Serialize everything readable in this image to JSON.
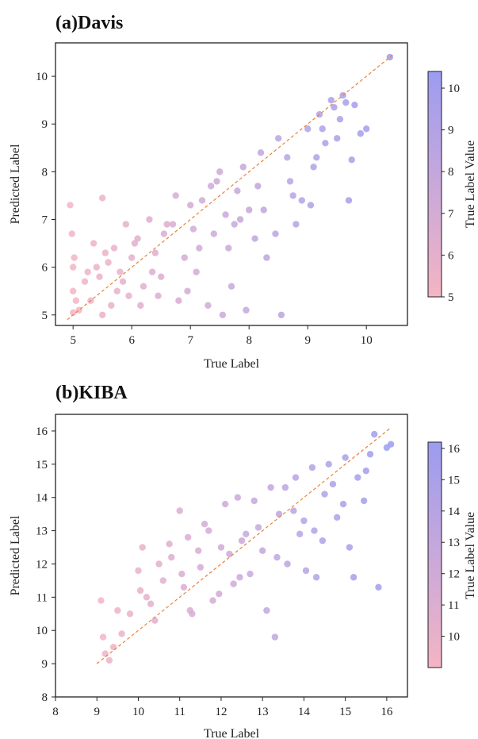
{
  "chart_data": [
    {
      "type": "scatter",
      "title": "(a)Davis",
      "xlabel": "True Label",
      "ylabel": "Predicted Label",
      "xlim": [
        4.7,
        10.7
      ],
      "ylim": [
        4.78,
        10.7
      ],
      "xticks": [
        5,
        6,
        7,
        8,
        9,
        10
      ],
      "yticks": [
        5,
        6,
        7,
        8,
        9,
        10
      ],
      "reference_line": {
        "type": "diagonal y=x",
        "from": 4.9,
        "to": 10.45,
        "color": "#e8823a",
        "style": "dashed"
      },
      "colorbar": {
        "label": "True Label Value",
        "min": 5,
        "max": 10.4,
        "ticks": [
          5,
          6,
          7,
          8,
          9,
          10
        ],
        "color_low": "#f4b4c4",
        "color_high": "#9c9cf0"
      },
      "series": [
        {
          "x": [
            4.95,
            4.98,
            5.0,
            5.0,
            5.0,
            5.02,
            5.3,
            5.35,
            5.45,
            5.5,
            5.6,
            5.65,
            5.7,
            5.8,
            5.9,
            5.95,
            6.0,
            6.1,
            6.2,
            6.3,
            6.4,
            6.5,
            6.6,
            6.75,
            6.9,
            7.0,
            7.1,
            7.2,
            7.4,
            7.5,
            7.6,
            7.7,
            7.8,
            7.9,
            8.0,
            8.1,
            8.2,
            8.3,
            8.5,
            8.7,
            8.9,
            9.0,
            9.1,
            9.2,
            9.3,
            9.4,
            9.5,
            9.6,
            9.7,
            9.8,
            9.9,
            10.0,
            10.4,
            5.05,
            5.2,
            5.4,
            5.55,
            5.75,
            6.05,
            6.35,
            6.55,
            6.8,
            7.05,
            7.3,
            7.45,
            7.65,
            7.85,
            8.15,
            8.45,
            8.65,
            8.8,
            9.05,
            9.25,
            9.55,
            9.75,
            5.1,
            5.25,
            5.5,
            5.85,
            6.15,
            6.45,
            6.7,
            6.95,
            7.15,
            7.35,
            7.55,
            7.75,
            7.95,
            8.25,
            8.55,
            8.75,
            9.15,
            9.45,
            9.65
          ],
          "y": [
            7.3,
            6.7,
            6.0,
            5.5,
            5.05,
            6.2,
            5.3,
            6.5,
            5.8,
            7.45,
            6.1,
            5.2,
            6.4,
            5.9,
            6.9,
            5.4,
            6.2,
            6.6,
            5.6,
            7.0,
            6.3,
            5.8,
            6.9,
            7.5,
            6.2,
            7.3,
            5.9,
            7.4,
            6.7,
            8.0,
            7.1,
            5.6,
            7.6,
            8.1,
            7.2,
            6.6,
            8.4,
            6.2,
            8.7,
            7.8,
            7.4,
            8.9,
            8.1,
            9.2,
            8.6,
            9.5,
            8.7,
            9.6,
            7.4,
            9.4,
            8.8,
            8.9,
            10.4,
            5.3,
            5.7,
            6.0,
            6.3,
            5.5,
            6.5,
            5.9,
            6.7,
            5.3,
            6.8,
            5.2,
            7.8,
            6.4,
            7.0,
            7.7,
            6.7,
            8.3,
            6.9,
            7.3,
            8.9,
            9.1,
            8.25,
            5.1,
            5.9,
            5.0,
            5.7,
            5.2,
            5.4,
            6.9,
            5.5,
            6.4,
            7.7,
            5.0,
            6.9,
            5.1,
            7.2,
            5.0,
            7.5,
            8.3,
            9.35,
            9.45
          ]
        }
      ]
    },
    {
      "type": "scatter",
      "title": "(b)KIBA",
      "xlabel": "True Label",
      "ylabel": "Predicted Label",
      "xlim": [
        8.0,
        16.5
      ],
      "ylim": [
        8.0,
        16.5
      ],
      "xticks": [
        8,
        9,
        10,
        11,
        12,
        13,
        14,
        15,
        16
      ],
      "yticks": [
        8,
        9,
        10,
        11,
        12,
        13,
        14,
        15,
        16
      ],
      "reference_line": {
        "type": "diagonal y=x",
        "from": 9.0,
        "to": 16.1,
        "color": "#e8823a",
        "style": "dashed"
      },
      "colorbar": {
        "label": "True Label Value",
        "min": 9.0,
        "max": 16.2,
        "ticks": [
          10,
          11,
          12,
          13,
          14,
          15,
          16
        ],
        "color_low": "#f4b4c4",
        "color_high": "#9c9cf0"
      },
      "series": [
        {
          "x": [
            9.1,
            9.15,
            9.2,
            9.3,
            9.4,
            9.5,
            9.6,
            9.8,
            10.0,
            10.1,
            10.2,
            10.4,
            10.6,
            10.8,
            11.0,
            11.1,
            11.2,
            11.3,
            11.5,
            11.6,
            11.8,
            12.0,
            12.1,
            12.3,
            12.4,
            12.5,
            12.7,
            12.8,
            13.0,
            13.2,
            13.3,
            13.4,
            13.6,
            13.8,
            13.9,
            14.0,
            14.2,
            14.3,
            14.5,
            14.6,
            14.8,
            15.0,
            15.1,
            15.3,
            15.5,
            15.6,
            15.8,
            16.0,
            16.1,
            10.05,
            10.3,
            10.5,
            10.75,
            11.05,
            11.25,
            11.45,
            11.7,
            11.95,
            12.2,
            12.45,
            12.6,
            12.9,
            13.1,
            13.35,
            13.55,
            13.75,
            14.05,
            14.25,
            14.45,
            14.7,
            14.95,
            15.2,
            15.45,
            15.7
          ],
          "y": [
            10.9,
            9.8,
            9.3,
            9.1,
            9.5,
            10.6,
            9.9,
            10.5,
            11.8,
            12.5,
            11.0,
            10.3,
            11.5,
            12.2,
            13.6,
            11.3,
            12.8,
            10.5,
            11.9,
            13.2,
            10.9,
            12.5,
            13.8,
            11.4,
            14.0,
            12.7,
            11.7,
            13.9,
            12.4,
            14.3,
            9.8,
            13.5,
            12.0,
            14.6,
            12.9,
            13.3,
            14.9,
            11.6,
            14.1,
            15.0,
            13.4,
            15.2,
            12.5,
            14.6,
            14.8,
            15.3,
            11.3,
            15.5,
            15.6,
            11.2,
            10.8,
            12.0,
            12.6,
            11.7,
            10.6,
            12.4,
            13.0,
            11.1,
            12.3,
            11.6,
            12.9,
            13.1,
            10.6,
            12.2,
            14.3,
            13.6,
            11.8,
            13.0,
            12.7,
            14.4,
            13.8,
            11.6,
            13.9,
            15.9
          ]
        }
      ]
    }
  ]
}
